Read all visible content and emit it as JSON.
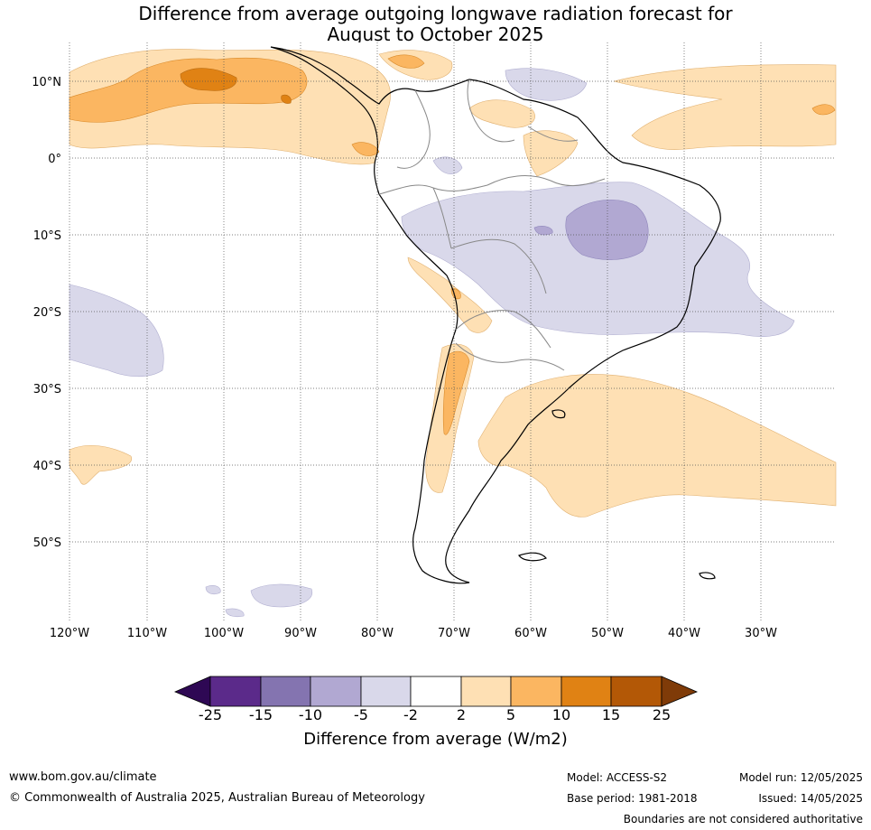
{
  "title_line1": "Difference from average outgoing longwave radiation forecast for",
  "title_line2": "August to October 2025",
  "lat_labels": [
    "10°N",
    "0°",
    "10°S",
    "20°S",
    "30°S",
    "40°S",
    "50°S"
  ],
  "lon_labels": [
    "120°W",
    "110°W",
    "100°W",
    "90°W",
    "80°W",
    "70°W",
    "60°W",
    "50°W",
    "40°W",
    "30°W"
  ],
  "colorbar": {
    "labels": [
      "-25",
      "-15",
      "-10",
      "-5",
      "-2",
      "2",
      "5",
      "10",
      "15",
      "25"
    ],
    "colors": [
      "#2e0854",
      "#5b2a8a",
      "#8474b0",
      "#b1a8d2",
      "#d9d8ea",
      "#ffffff",
      "#fee0b4",
      "#fbb661",
      "#e08214",
      "#b35806",
      "#7f3b08"
    ],
    "title": "Difference from average (W/m2)"
  },
  "footer": {
    "website": "www.bom.gov.au/climate",
    "copyright": "© Commonwealth of Australia 2025, Australian Bureau of Meteorology",
    "model": "Model: ACCESS-S2",
    "base_period": "Base period: 1981-2018",
    "model_run": "Model run: 12/05/2025",
    "issued": "Issued: 14/05/2025",
    "disclaimer": "Boundaries are not considered authoritative"
  }
}
